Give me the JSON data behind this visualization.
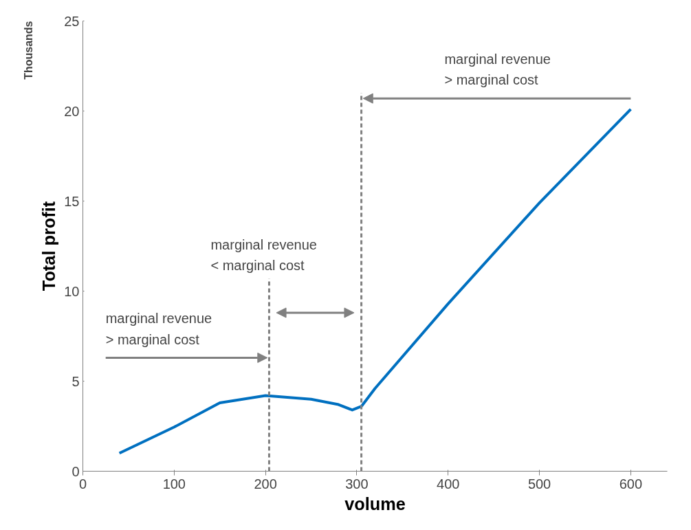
{
  "chart_data": {
    "type": "line",
    "xlabel": "volume",
    "ylabel": "Total profit",
    "x": [
      40,
      100,
      150,
      200,
      250,
      280,
      295,
      305,
      320,
      400,
      500,
      600
    ],
    "series": [
      {
        "color": "#0070c0",
        "values": [
          1.0,
          2.45,
          3.8,
          4.2,
          4.0,
          3.7,
          3.4,
          3.6,
          4.6,
          9.3,
          14.9,
          20.1
        ]
      }
    ],
    "xlim": [
      0,
      640
    ],
    "xticks": [
      0,
      100,
      200,
      300,
      400,
      500,
      600
    ],
    "ylim": [
      0,
      25
    ],
    "yticks": [
      0,
      5,
      10,
      15,
      20,
      25
    ],
    "grid": false,
    "marker": "none",
    "line_style": "solid",
    "ref_lines": [
      {
        "axis": "x",
        "value": 204,
        "label": null,
        "color": "#808080",
        "line_style": "dashed"
      },
      {
        "axis": "x",
        "value": 305,
        "label": null,
        "color": "#808080",
        "line_style": "dashed"
      }
    ],
    "annotations": [
      "Thousands",
      {
        "text": "marginal revenue\n> marginal cost",
        "x": 204,
        "y": 6.3
      },
      "marginal revenue\n< marginal cost",
      "marginal revenue\n> marginal cost"
    ]
  }
}
